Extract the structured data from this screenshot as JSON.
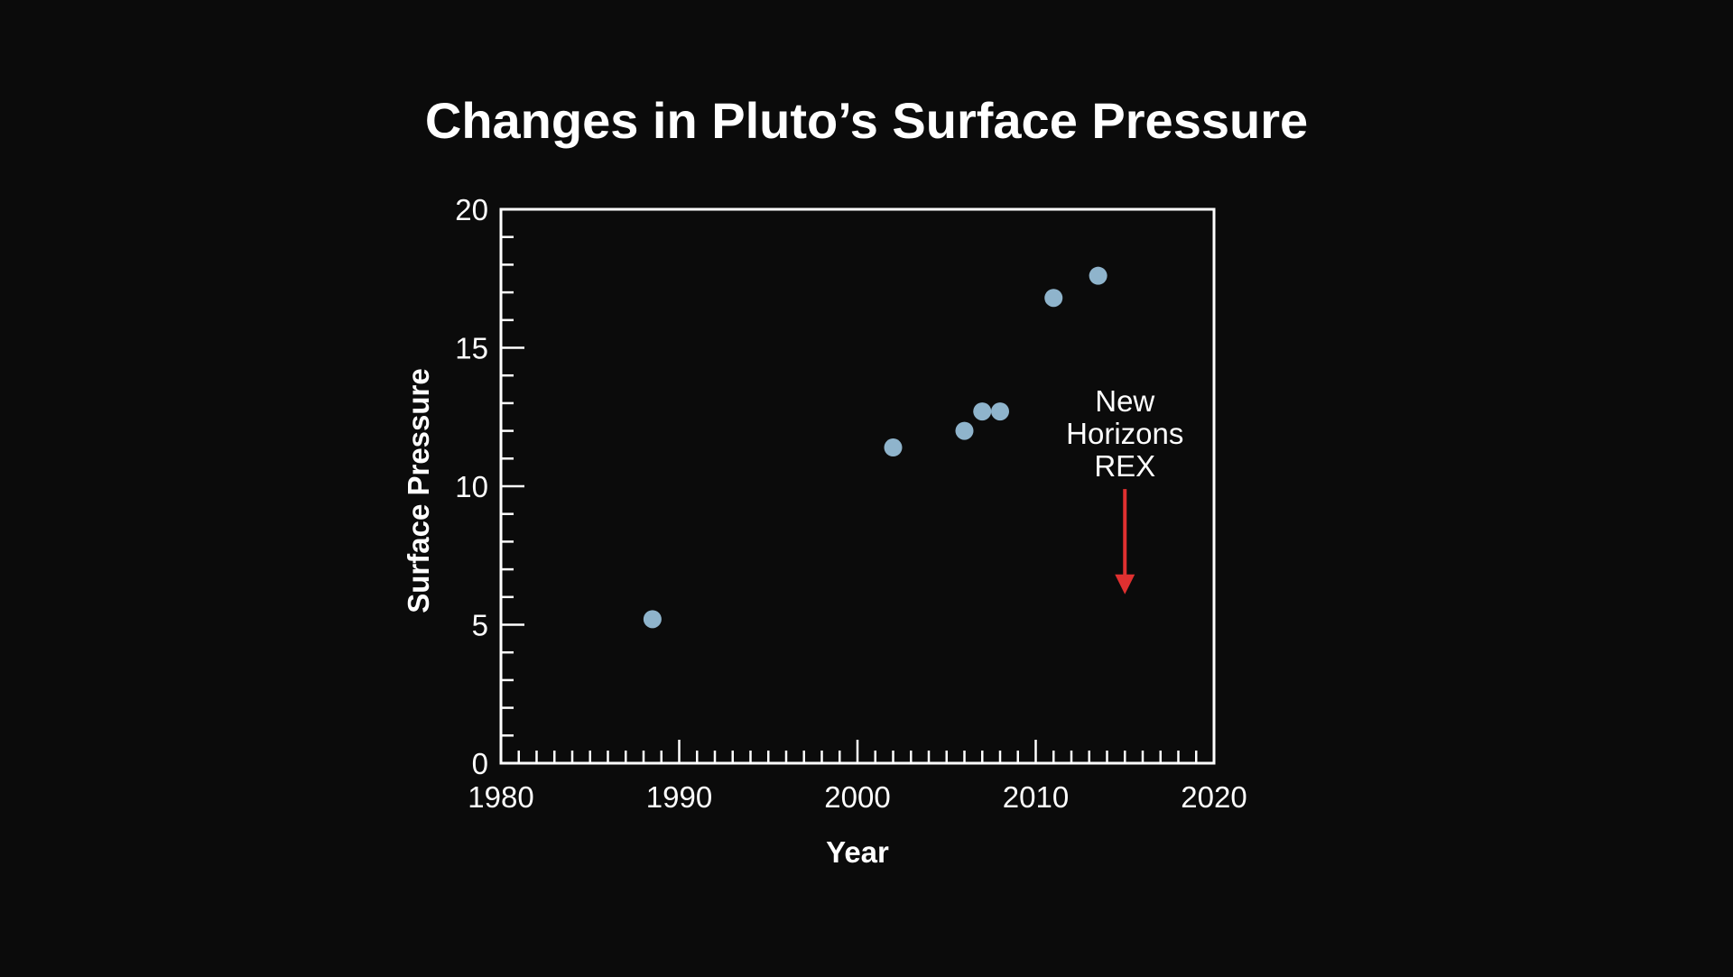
{
  "colors": {
    "background": "#0b0b0b",
    "foreground": "#ffffff",
    "point": "#8fb4cc",
    "arrow": "#e03030"
  },
  "chart_data": {
    "type": "scatter",
    "title": "Changes in Pluto’s Surface Pressure",
    "xlabel": "Year",
    "ylabel": "Surface Pressure",
    "xlim": [
      1980,
      2020
    ],
    "ylim": [
      0,
      20
    ],
    "grid": false,
    "x_ticks": [
      {
        "value": 1980,
        "label": "1980"
      },
      {
        "value": 1990,
        "label": "1990"
      },
      {
        "value": 2000,
        "label": "2000"
      },
      {
        "value": 2010,
        "label": "2010"
      },
      {
        "value": 2020,
        "label": "2020"
      }
    ],
    "y_ticks": [
      {
        "value": 0,
        "label": "0"
      },
      {
        "value": 5,
        "label": "5"
      },
      {
        "value": 10,
        "label": "10"
      },
      {
        "value": 15,
        "label": "15"
      },
      {
        "value": 20,
        "label": "20"
      }
    ],
    "x_minor_step": 1,
    "y_minor_step": 1,
    "points": [
      {
        "x": 1988.5,
        "y": 5.2
      },
      {
        "x": 2002.0,
        "y": 11.4
      },
      {
        "x": 2006.0,
        "y": 12.0
      },
      {
        "x": 2007.0,
        "y": 12.7
      },
      {
        "x": 2008.0,
        "y": 12.7
      },
      {
        "x": 2011.0,
        "y": 16.8
      },
      {
        "x": 2013.5,
        "y": 17.6
      }
    ],
    "annotations": [
      {
        "lines": [
          "New",
          "Horizons",
          "REX"
        ],
        "x": 2015,
        "arrow_from_y": 9.9,
        "arrow_to_y": 6.1
      }
    ]
  }
}
